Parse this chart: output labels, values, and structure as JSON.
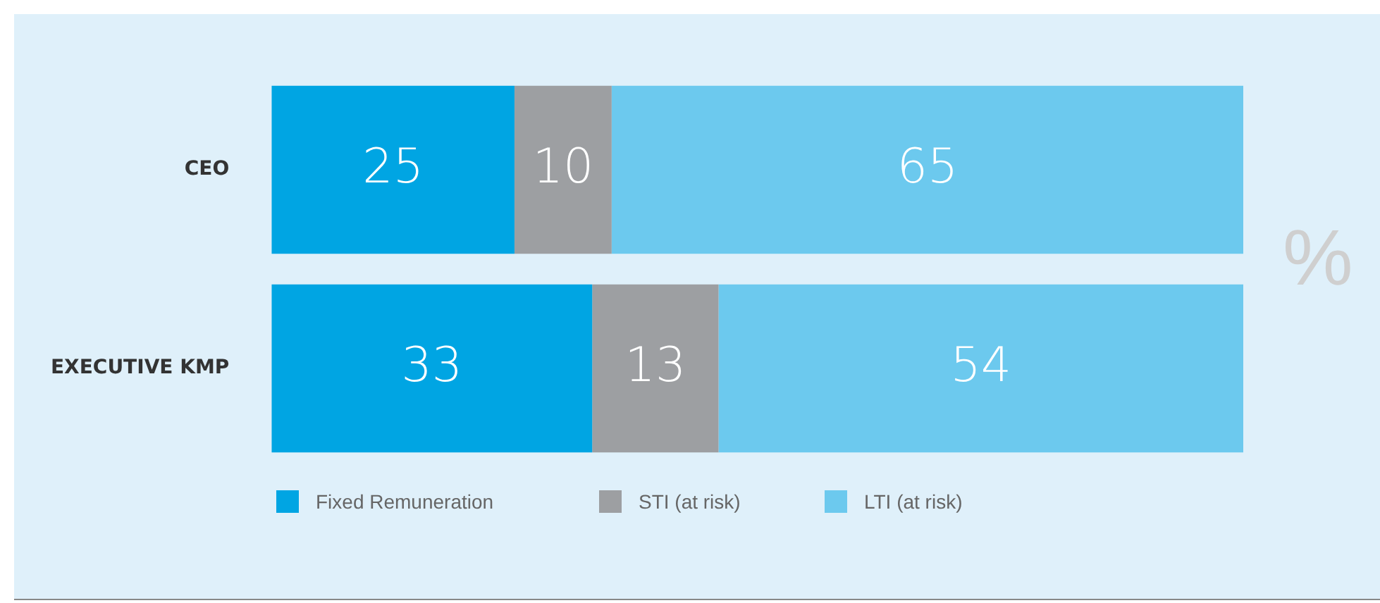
{
  "chart_data": {
    "type": "bar",
    "orientation": "horizontal",
    "stacked": true,
    "categories": [
      "CEO",
      "EXECUTIVE KMP"
    ],
    "series": [
      {
        "name": "Fixed Remuneration",
        "color": "#00a5e3",
        "values": [
          25,
          33
        ]
      },
      {
        "name": "STI (at risk)",
        "color": "#9d9fa2",
        "values": [
          10,
          13
        ]
      },
      {
        "name": "LTI (at risk)",
        "color": "#6cc9ee",
        "values": [
          65,
          54
        ]
      }
    ],
    "data_labels": true,
    "grid": false,
    "tick_labels": "y",
    "legend": "bottom left",
    "annotations": [
      "%"
    ]
  }
}
